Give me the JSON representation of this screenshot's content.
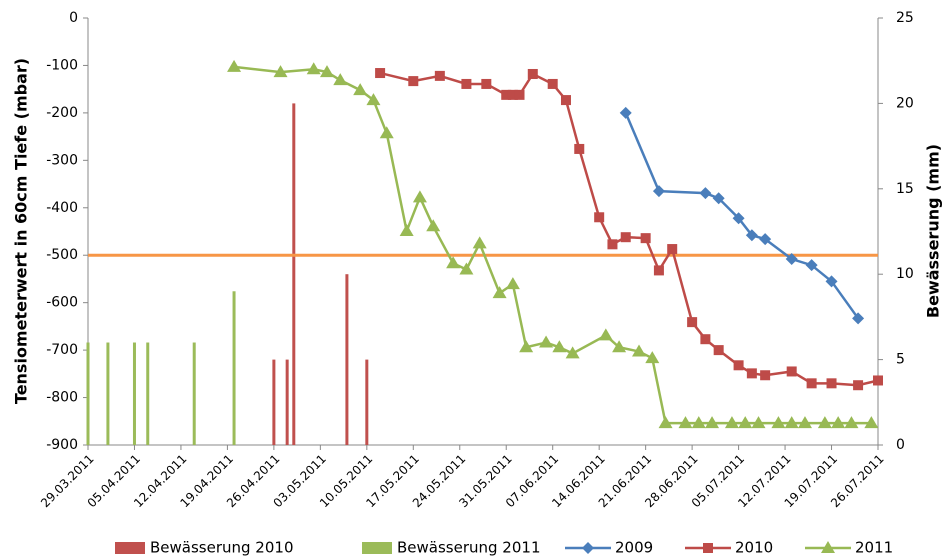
{
  "chart_data": {
    "type": "line",
    "y_label": "Tensiometerwert in 60cm Tiefe (mbar)",
    "y2_label": "Bewässerung (mm)",
    "xlim": [
      "29.03.2011",
      "26.07.2011"
    ],
    "xticks": [
      "29.03.2011",
      "05.04.2011",
      "12.04.2011",
      "19.04.2011",
      "26.04.2011",
      "03.05.2011",
      "10.05.2011",
      "17.05.2011",
      "24.05.2011",
      "31.05.2011",
      "07.06.2011",
      "14.06.2011",
      "21.06.2011",
      "28.06.2011",
      "05.07.2011",
      "12.07.2011",
      "19.07.2011",
      "26.07.2011"
    ],
    "ylim": [
      -900,
      0
    ],
    "yticks": [
      0,
      -100,
      -200,
      -300,
      -400,
      -500,
      -600,
      -700,
      -800,
      -900
    ],
    "y2lim": [
      0,
      25
    ],
    "y2ticks": [
      0,
      5,
      10,
      15,
      20,
      25
    ],
    "grid": false,
    "reference_line": {
      "value": -500,
      "color": "#f79646"
    },
    "series": [
      {
        "name": "Bewässerung 2010",
        "type": "bar",
        "axis": "y2",
        "color": "#c0504d",
        "x": [
          "26.04.2011",
          "28.04.2011",
          "29.04.2011",
          "07.05.2011",
          "10.05.2011"
        ],
        "values": [
          5,
          5,
          20,
          10,
          5
        ]
      },
      {
        "name": "Bewässerung 2011",
        "type": "bar",
        "axis": "y2",
        "color": "#9bbb59",
        "x": [
          "29.03.2011",
          "01.04.2011",
          "05.04.2011",
          "07.04.2011",
          "14.04.2011",
          "20.04.2011"
        ],
        "values": [
          6,
          6,
          6,
          6,
          6,
          9
        ]
      },
      {
        "name": "2009",
        "type": "line",
        "marker": "diamond",
        "color": "#4a7ebb",
        "x": [
          "18.06.2011",
          "23.06.2011",
          "30.06.2011",
          "02.07.2011",
          "05.07.2011",
          "07.07.2011",
          "09.07.2011",
          "13.07.2011",
          "16.07.2011",
          "19.07.2011",
          "23.07.2011"
        ],
        "values": [
          -200,
          -365,
          -369,
          -380,
          -422,
          -458,
          -466,
          -508,
          -521,
          -555,
          -633
        ]
      },
      {
        "name": "2010",
        "type": "line",
        "marker": "square",
        "color": "#be4b48",
        "x": [
          "12.05.2011",
          "17.05.2011",
          "21.05.2011",
          "25.05.2011",
          "28.05.2011",
          "31.05.2011",
          "01.06.2011",
          "02.06.2011",
          "04.06.2011",
          "07.06.2011",
          "09.06.2011",
          "11.06.2011",
          "14.06.2011",
          "16.06.2011",
          "18.06.2011",
          "21.06.2011",
          "23.06.2011",
          "25.06.2011",
          "28.06.2011",
          "30.06.2011",
          "02.07.2011",
          "05.07.2011",
          "07.07.2011",
          "09.07.2011",
          "13.07.2011",
          "16.07.2011",
          "19.07.2011",
          "23.07.2011",
          "26.07.2011"
        ],
        "values": [
          -116,
          -133,
          -122,
          -139,
          -139,
          -162,
          -162,
          -162,
          -118,
          -139,
          -173,
          -276,
          -420,
          -477,
          -462,
          -464,
          -532,
          -487,
          -641,
          -677,
          -700,
          -732,
          -749,
          -753,
          -745,
          -770,
          -770,
          -774,
          -764
        ]
      },
      {
        "name": "2011",
        "type": "line",
        "marker": "triangle",
        "color": "#98b954",
        "x": [
          "20.04.2011",
          "27.04.2011",
          "02.05.2011",
          "04.05.2011",
          "06.05.2011",
          "09.05.2011",
          "11.05.2011",
          "13.05.2011",
          "16.05.2011",
          "18.05.2011",
          "20.05.2011",
          "23.05.2011",
          "25.05.2011",
          "27.05.2011",
          "30.05.2011",
          "01.06.2011",
          "03.06.2011",
          "06.06.2011",
          "08.06.2011",
          "10.06.2011",
          "15.06.2011",
          "17.06.2011",
          "20.06.2011",
          "22.06.2011",
          "24.06.2011",
          "27.06.2011",
          "29.06.2011",
          "01.07.2011",
          "04.07.2011",
          "06.07.2011",
          "08.07.2011",
          "11.07.2011",
          "13.07.2011",
          "15.07.2011",
          "18.07.2011",
          "20.07.2011",
          "22.07.2011",
          "25.07.2011"
        ],
        "values": [
          -103,
          -114,
          -108,
          -114,
          -131,
          -152,
          -173,
          -243,
          -449,
          -378,
          -439,
          -517,
          -530,
          -475,
          -580,
          -561,
          -694,
          -684,
          -694,
          -707,
          -669,
          -694,
          -703,
          -717,
          -854,
          -854,
          -854,
          -854,
          -854,
          -854,
          -854,
          -854,
          -854,
          -854,
          -854,
          -854,
          -854,
          -854
        ]
      }
    ]
  }
}
